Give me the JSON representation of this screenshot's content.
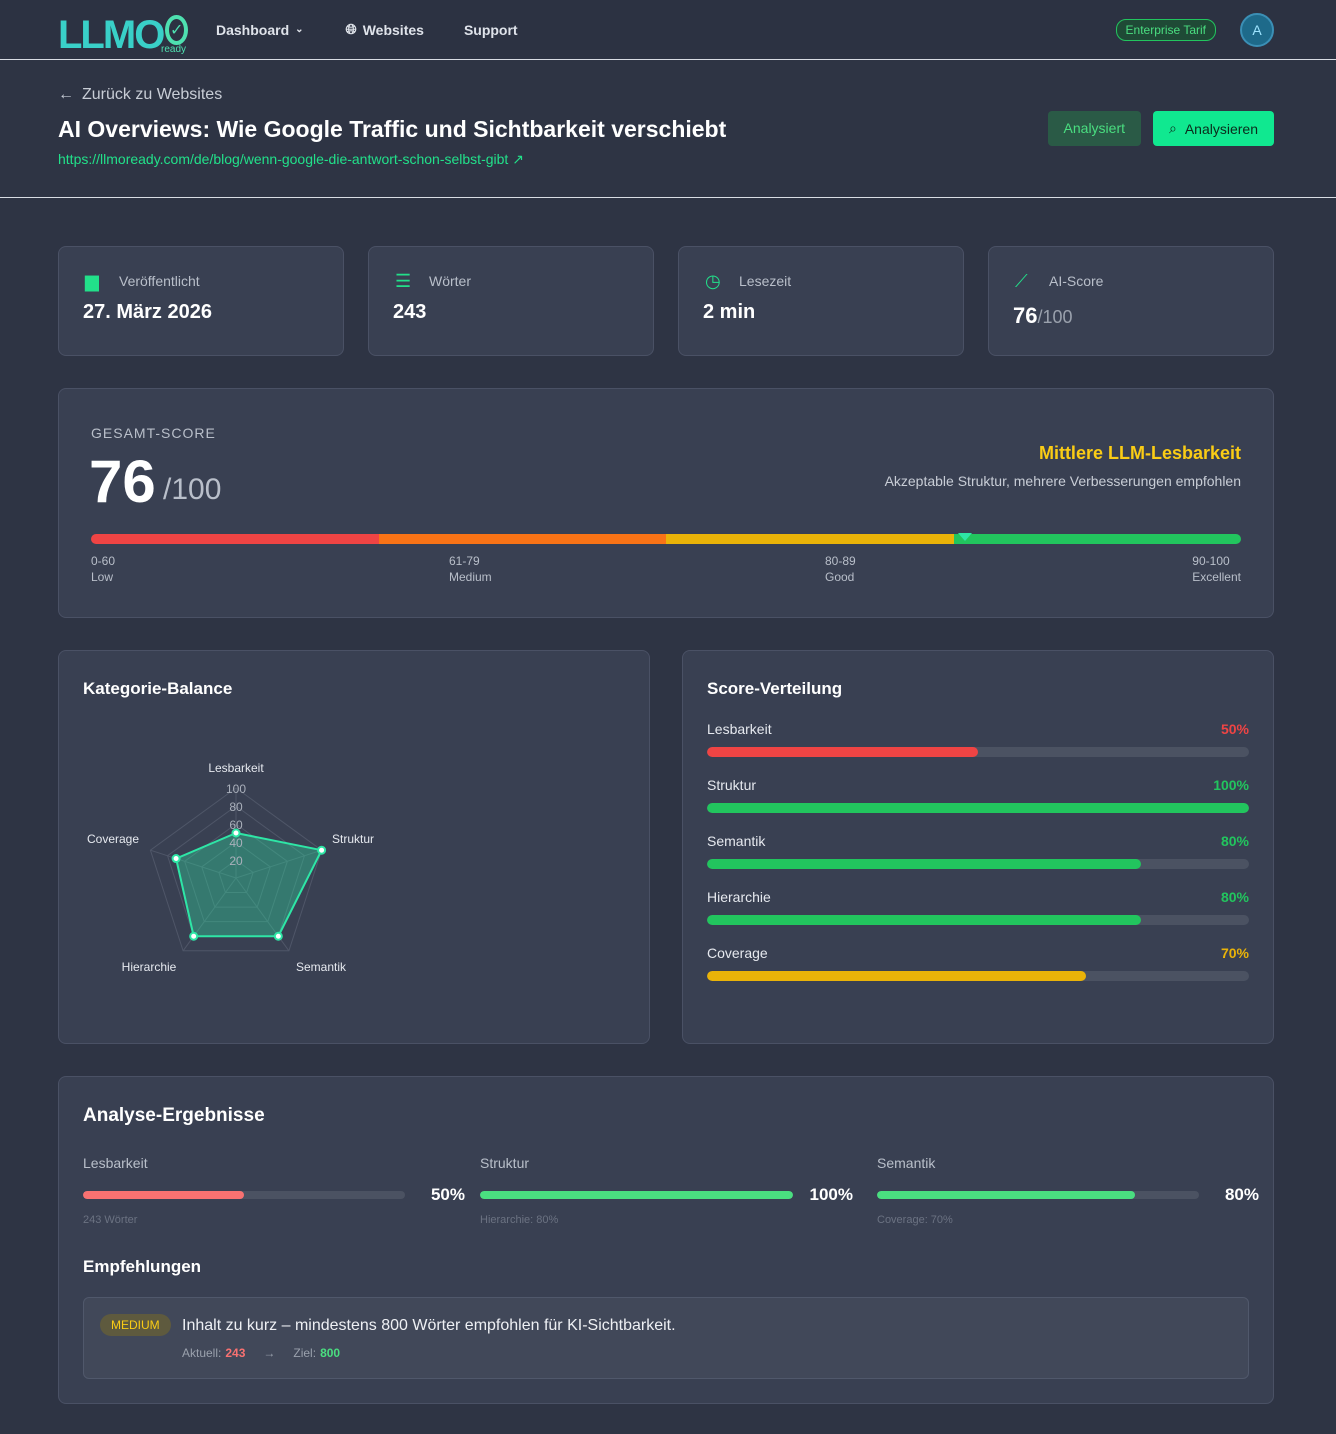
{
  "nav": {
    "logo": "LLMO",
    "logo_sub": "ready",
    "items": [
      {
        "label": "Dashboard",
        "icon": "chevron-down-icon"
      },
      {
        "label": "Websites",
        "icon": "globe-icon"
      },
      {
        "label": "Support"
      }
    ],
    "plan": "Enterprise Tarif",
    "avatar": "A"
  },
  "header": {
    "back": "Zurück zu Websites",
    "title": "AI Overviews: Wie Google Traffic und Sichtbarkeit verschiebt",
    "url": "https://llmoready.com/de/blog/wenn-google-die-antwort-schon-selbst-gibt",
    "status": "Analysiert",
    "analyze": "Analysieren"
  },
  "stats": [
    {
      "label": "Veröffentlicht",
      "value": "27. März 2026",
      "icon": "calendar-icon"
    },
    {
      "label": "Wörter",
      "value": "243",
      "icon": "text-lines-icon"
    },
    {
      "label": "Lesezeit",
      "value": "2 min",
      "icon": "clock-icon"
    },
    {
      "label": "AI-Score",
      "value": "76",
      "suffix": "/100",
      "icon": "chart-line-icon"
    }
  ],
  "overall": {
    "label": "GESAMT-SCORE",
    "score": "76",
    "max": "/100",
    "score_value": 76,
    "rating": "Mittlere LLM-Lesbarkeit",
    "desc": "Akzeptable Struktur, mehrere Verbesserungen empfohlen",
    "ranges": [
      {
        "range": "0-60",
        "name": "Low"
      },
      {
        "range": "61-79",
        "name": "Medium"
      },
      {
        "range": "80-89",
        "name": "Good"
      },
      {
        "range": "90-100",
        "name": "Excellent"
      }
    ],
    "colors": [
      "#ef4444",
      "#f97316",
      "#eab308",
      "#22c55e"
    ]
  },
  "chart_data": {
    "type": "radar",
    "title": "Kategorie-Balance",
    "categories": [
      "Lesbarkeit",
      "Struktur",
      "Semantik",
      "Hierarchie",
      "Coverage"
    ],
    "values": [
      50,
      100,
      80,
      80,
      70
    ],
    "ticks": [
      "20",
      "40",
      "60",
      "80",
      "100"
    ],
    "range": [
      0,
      100
    ],
    "color": "#2ee6a6"
  },
  "distribution": {
    "title": "Score-Verteilung",
    "items": [
      {
        "label": "Lesbarkeit",
        "pct": "50%",
        "value": 50,
        "color": "#ef4444"
      },
      {
        "label": "Struktur",
        "pct": "100%",
        "value": 100,
        "color": "#22c55e"
      },
      {
        "label": "Semantik",
        "pct": "80%",
        "value": 80,
        "color": "#22c55e"
      },
      {
        "label": "Hierarchie",
        "pct": "80%",
        "value": 80,
        "color": "#22c55e"
      },
      {
        "label": "Coverage",
        "pct": "70%",
        "value": 70,
        "color": "#eab308"
      }
    ]
  },
  "results": {
    "title": "Analyse-Ergebnisse",
    "items": [
      {
        "label": "Lesbarkeit",
        "pct": "50%",
        "value": 50,
        "note": "243 Wörter",
        "color": "#f87171"
      },
      {
        "label": "Struktur",
        "pct": "100%",
        "value": 100,
        "note": "Hierarchie: 80%",
        "color": "#4ade80"
      },
      {
        "label": "Semantik",
        "pct": "80%",
        "value": 80,
        "note": "Coverage: 70%",
        "color": "#4ade80"
      }
    ],
    "rec_title": "Empfehlungen",
    "recs": [
      {
        "badge": "MEDIUM",
        "text": "Inhalt zu kurz – mindestens 800 Wörter empfohlen für KI-Sichtbarkeit.",
        "current_label": "Aktuell:",
        "current": "243",
        "target_label": "Ziel:",
        "target": "800"
      }
    ]
  }
}
